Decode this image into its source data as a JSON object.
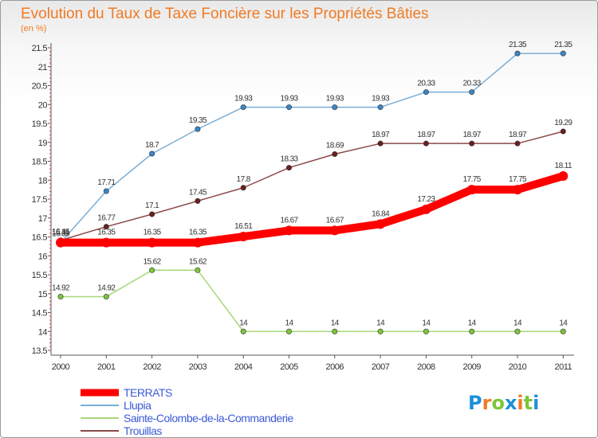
{
  "chart_data": {
    "type": "line",
    "title": "Evolution du Taux de Taxe Foncière sur les Propriétés Bâties",
    "subtitle": "(en %)",
    "x": [
      "2000",
      "2001",
      "2002",
      "2003",
      "2004",
      "2005",
      "2006",
      "2007",
      "2008",
      "2009",
      "2010",
      "2011"
    ],
    "yticks": [
      "13.5",
      "14",
      "14.5",
      "15",
      "15.5",
      "16",
      "16.5",
      "17",
      "17.5",
      "18",
      "18.5",
      "19",
      "19.5",
      "20",
      "20.5",
      "21",
      "21.5"
    ],
    "ylim": [
      13.5,
      21.5
    ],
    "grid": false,
    "legend_position": "bottom-left",
    "series": [
      {
        "name": "TERRATS",
        "color": "#ff0000",
        "marker_color": "#ff0000",
        "values": [
          16.35,
          16.35,
          16.35,
          16.35,
          16.51,
          16.67,
          16.67,
          16.84,
          17.23,
          17.75,
          17.75,
          18.11
        ],
        "labels": [
          "16.35",
          "16.35",
          "16.35",
          "16.35",
          "16.51",
          "16.67",
          "16.67",
          "16.84",
          "17.23",
          "17.75",
          "17.75",
          "18.11"
        ]
      },
      {
        "name": "Llupia",
        "color": "#7aaed6",
        "marker_color": "#3a86c8",
        "values": [
          16.35,
          17.71,
          18.7,
          19.35,
          19.93,
          19.93,
          19.93,
          19.93,
          20.33,
          20.33,
          21.35,
          21.35
        ],
        "labels": [
          "16.35",
          "17.71",
          "18.7",
          "19.35",
          "19.93",
          "19.93",
          "19.93",
          "19.93",
          "20.33",
          "20.33",
          "21.35",
          "21.35"
        ]
      },
      {
        "name": "Sainte-Colombe-de-la-Commanderie",
        "color": "#a8d878",
        "marker_color": "#7cc63a",
        "values": [
          14.92,
          14.92,
          15.62,
          15.62,
          14,
          14,
          14,
          14,
          14,
          14,
          14,
          14
        ],
        "labels": [
          "14.92",
          "14.92",
          "15.62",
          "15.62",
          "14",
          "14",
          "14",
          "14",
          "14",
          "14",
          "14",
          "14"
        ]
      },
      {
        "name": "Trouillas",
        "color": "#8b4a4a",
        "marker_color": "#6b1f1f",
        "values": [
          16.41,
          16.77,
          17.1,
          17.45,
          17.8,
          18.33,
          18.69,
          18.97,
          18.97,
          18.97,
          18.97,
          19.29
        ],
        "labels": [
          "16.41",
          "16.77",
          "17.1",
          "17.45",
          "17.8",
          "18.33",
          "18.69",
          "18.97",
          "18.97",
          "18.97",
          "18.97",
          "19.29"
        ]
      }
    ]
  },
  "logo": {
    "letters": [
      "P",
      "r",
      "o",
      "x",
      "i",
      "t",
      "i"
    ],
    "colors": [
      "#1e90d8",
      "#f07a24",
      "#7cc63a",
      "#1e90d8",
      "#f07a24",
      "#7cc63a",
      "#1e90d8"
    ]
  }
}
